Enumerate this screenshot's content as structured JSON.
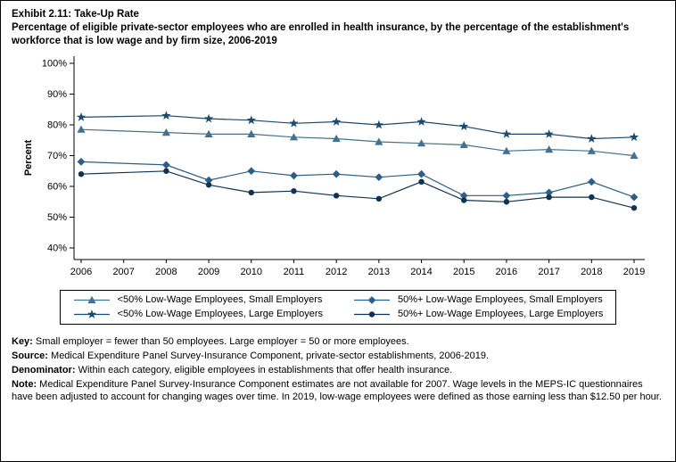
{
  "title": {
    "line1": "Exhibit 2.11: Take-Up Rate",
    "line2": "Percentage of eligible private-sector employees who are enrolled in health insurance, by the percentage of the establishment's workforce that is low wage and by firm size, 2006-2019"
  },
  "chart_data": {
    "type": "line",
    "x": [
      2006,
      2007,
      2008,
      2009,
      2010,
      2011,
      2012,
      2013,
      2014,
      2015,
      2016,
      2017,
      2018,
      2019
    ],
    "ylabel": "Percent",
    "ylim": [
      40,
      100
    ],
    "ytick_step": 10,
    "ytick_suffix": "%",
    "grid": false,
    "legend_position": "bottom",
    "note": "No data for 2007; estimates not available",
    "series": [
      {
        "name": "<50% Low-Wage Employees, Small Employers",
        "marker": "triangle",
        "color": "#44718f",
        "values": [
          78.5,
          null,
          77.5,
          77,
          77,
          76,
          75.5,
          74.5,
          74,
          73.5,
          71.5,
          72,
          71.5,
          70
        ]
      },
      {
        "name": "<50% Low-Wage Employees, Large Employers",
        "marker": "star",
        "color": "#1b4a6e",
        "values": [
          82.5,
          null,
          83,
          82,
          81.5,
          80.5,
          81,
          80,
          81,
          79.5,
          77,
          77,
          75.5,
          76
        ]
      },
      {
        "name": "50%+ Low-Wage Employees, Small Employers",
        "marker": "diamond",
        "color": "#2b5f86",
        "values": [
          68,
          null,
          67,
          62,
          65,
          63.5,
          64,
          63,
          64,
          57,
          57,
          58,
          61.5,
          56.5
        ]
      },
      {
        "name": "50%+ Low-Wage Employees, Large Employers",
        "marker": "circle",
        "color": "#0f3350",
        "values": [
          64,
          null,
          65,
          60.5,
          58,
          58.5,
          57,
          56,
          61.5,
          55.5,
          55,
          56.5,
          56.5,
          53
        ]
      }
    ]
  },
  "footnotes": [
    {
      "label": "Key:",
      "text": "Small employer = fewer than 50 employees. Large employer = 50 or more employees."
    },
    {
      "label": "Source:",
      "text": "Medical Expenditure Panel Survey-Insurance Component, private-sector establishments, 2006-2019."
    },
    {
      "label": "Denominator:",
      "text": "Within each category, eligible employees in establishments that offer health insurance."
    },
    {
      "label": "Note:",
      "text": "Medical Expenditure Panel Survey-Insurance Component estimates are not available for 2007. Wage levels in the MEPS-IC questionnaires have been adjusted to account for changing wages over time. In 2019, low-wage employees were defined as those earning less than $12.50 per hour."
    }
  ]
}
